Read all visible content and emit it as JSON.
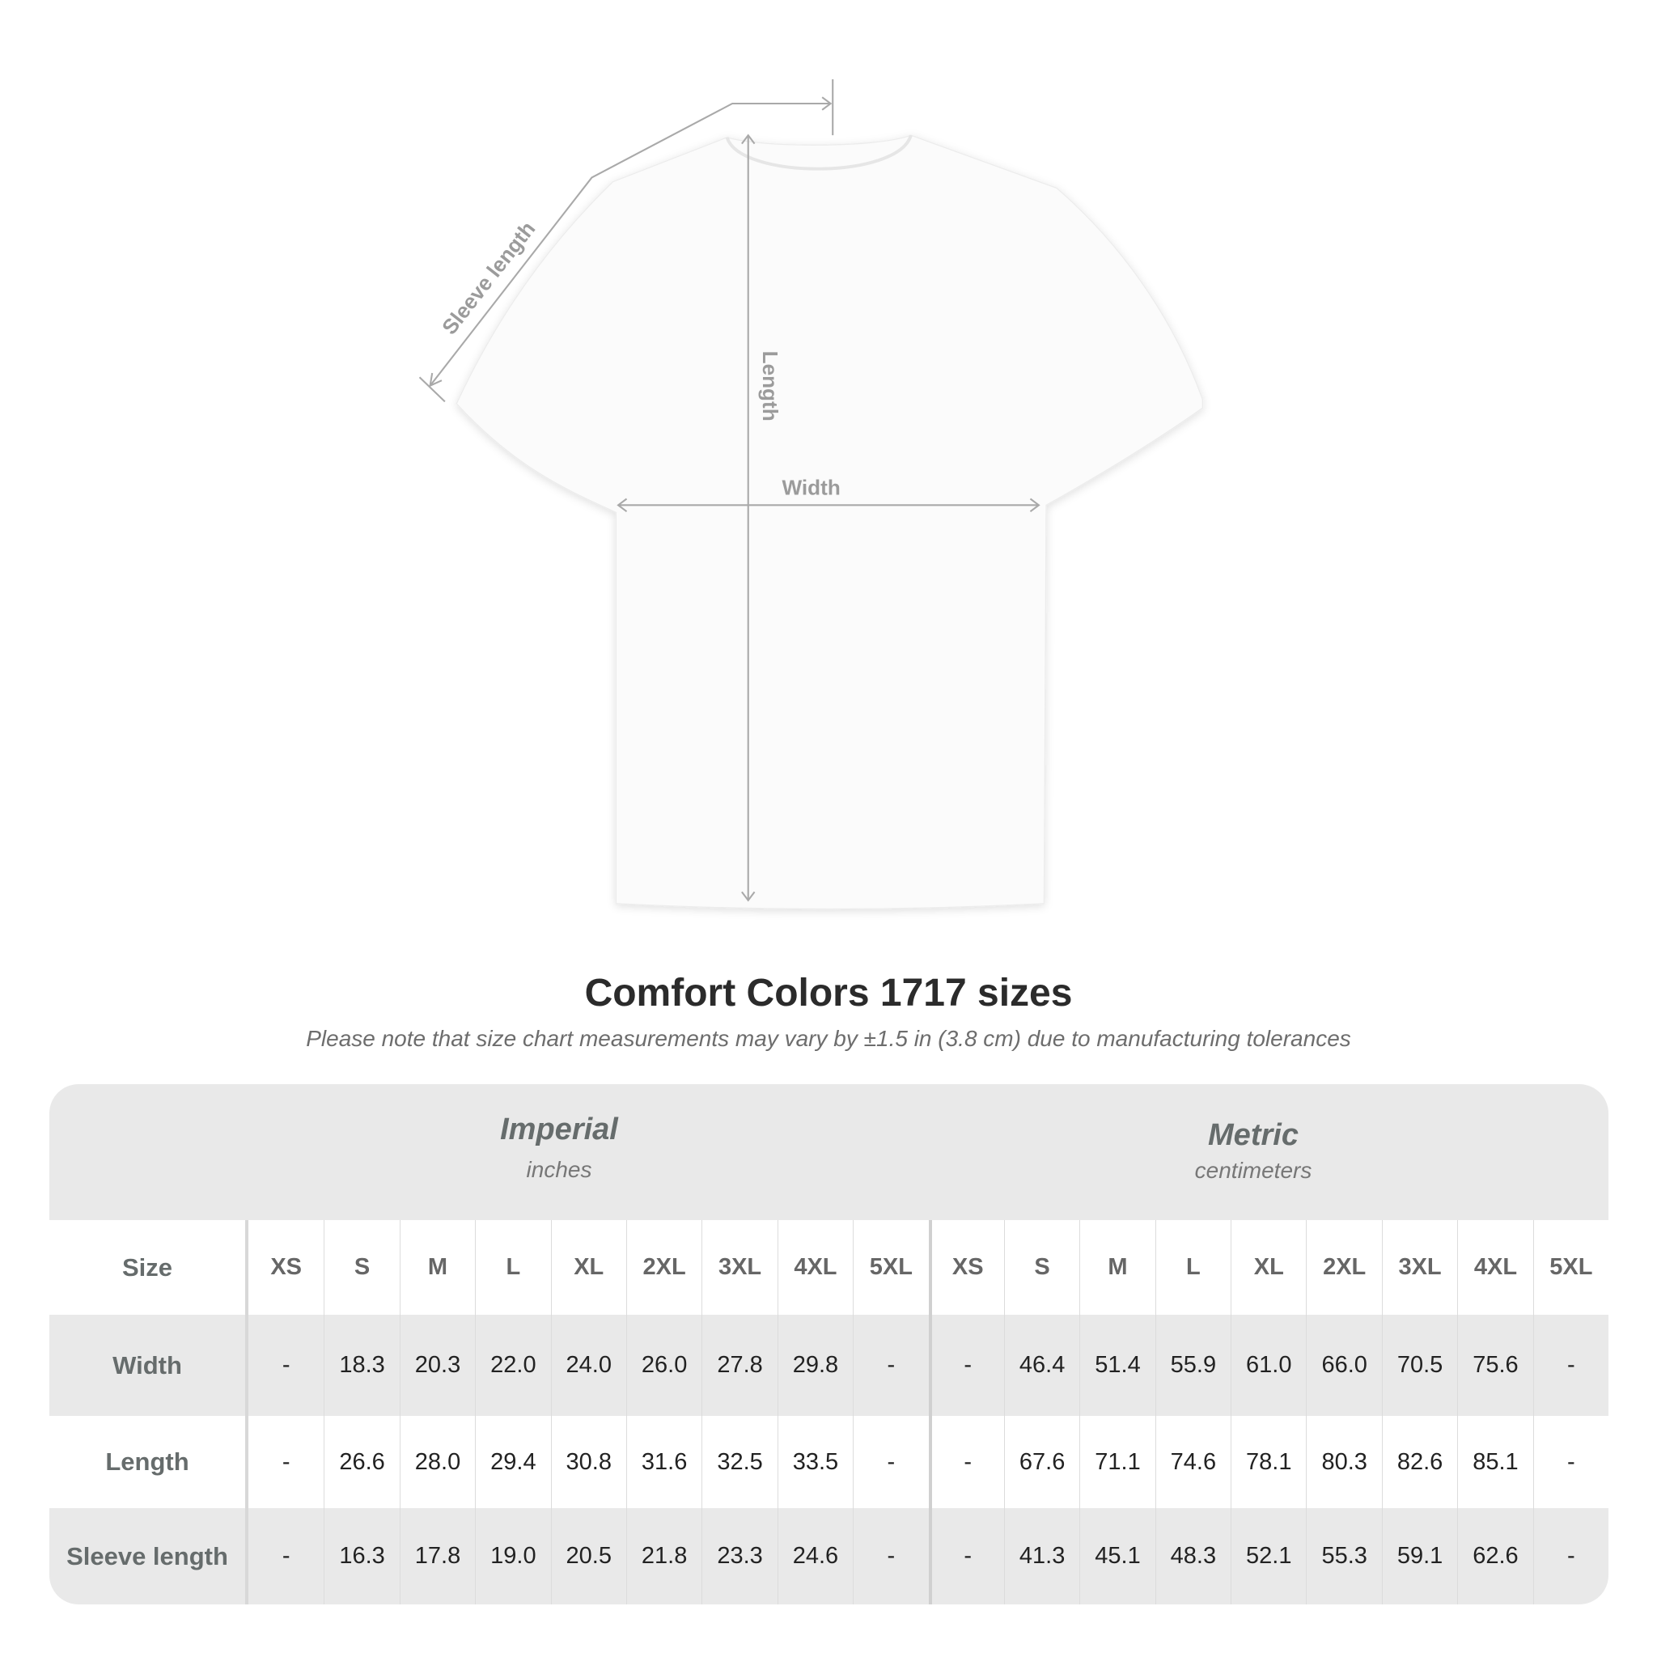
{
  "diagram": {
    "labels": {
      "sleeve": "Sleeve length",
      "length": "Length",
      "width": "Width"
    }
  },
  "title": "Comfort Colors 1717 sizes",
  "note": "Please note that size chart measurements may vary by ±1.5 in (3.8 cm) due to manufacturing tolerances",
  "table": {
    "imperial": {
      "name": "Imperial",
      "unit": "inches"
    },
    "metric": {
      "name": "Metric",
      "unit": "centimeters"
    },
    "size_label": "Size",
    "sizes": [
      "XS",
      "S",
      "M",
      "L",
      "XL",
      "2XL",
      "3XL",
      "4XL",
      "5XL"
    ],
    "rows": [
      {
        "label": "Width",
        "imperial": [
          "-",
          "18.3",
          "20.3",
          "22.0",
          "24.0",
          "26.0",
          "27.8",
          "29.8",
          "-"
        ],
        "metric": [
          "-",
          "46.4",
          "51.4",
          "55.9",
          "61.0",
          "66.0",
          "70.5",
          "75.6",
          "-"
        ]
      },
      {
        "label": "Length",
        "imperial": [
          "-",
          "26.6",
          "28.0",
          "29.4",
          "30.8",
          "31.6",
          "32.5",
          "33.5",
          "-"
        ],
        "metric": [
          "-",
          "67.6",
          "71.1",
          "74.6",
          "78.1",
          "80.3",
          "82.6",
          "85.1",
          "-"
        ]
      },
      {
        "label": "Sleeve length",
        "imperial": [
          "-",
          "16.3",
          "17.8",
          "19.0",
          "20.5",
          "21.8",
          "23.3",
          "24.6",
          "-"
        ],
        "metric": [
          "-",
          "41.3",
          "45.1",
          "48.3",
          "52.1",
          "55.3",
          "59.1",
          "62.6",
          "-"
        ]
      }
    ]
  }
}
